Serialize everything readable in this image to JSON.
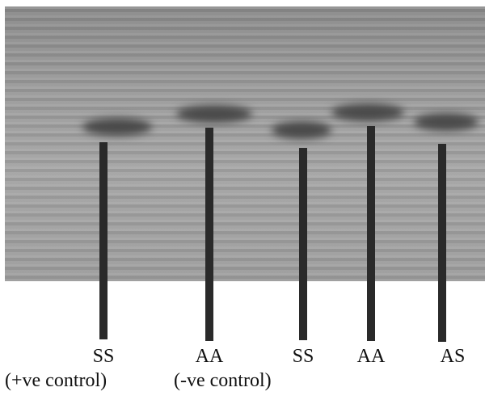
{
  "lanes": [
    {
      "label": "SS",
      "note": "(+ve control)"
    },
    {
      "label": "AA",
      "note": "(-ve control)"
    },
    {
      "label": "SS"
    },
    {
      "label": "AA"
    },
    {
      "label": "AS"
    }
  ]
}
